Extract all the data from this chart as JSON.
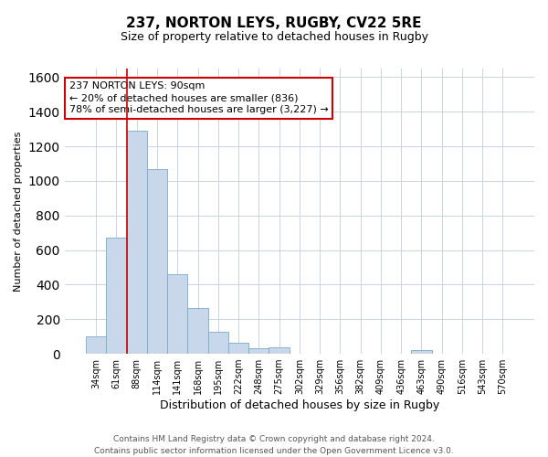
{
  "title": "237, NORTON LEYS, RUGBY, CV22 5RE",
  "subtitle": "Size of property relative to detached houses in Rugby",
  "xlabel": "Distribution of detached houses by size in Rugby",
  "ylabel": "Number of detached properties",
  "footer_line1": "Contains HM Land Registry data © Crown copyright and database right 2024.",
  "footer_line2": "Contains public sector information licensed under the Open Government Licence v3.0.",
  "annotation_line1": "237 NORTON LEYS: 90sqm",
  "annotation_line2": "← 20% of detached houses are smaller (836)",
  "annotation_line3": "78% of semi-detached houses are larger (3,227) →",
  "bar_color": "#c8d8ea",
  "bar_edge_color": "#7aaac8",
  "vline_color": "#cc0000",
  "categories": [
    "34sqm",
    "61sqm",
    "88sqm",
    "114sqm",
    "141sqm",
    "168sqm",
    "195sqm",
    "222sqm",
    "248sqm",
    "275sqm",
    "302sqm",
    "329sqm",
    "356sqm",
    "382sqm",
    "409sqm",
    "436sqm",
    "463sqm",
    "490sqm",
    "516sqm",
    "543sqm",
    "570sqm"
  ],
  "values": [
    100,
    670,
    1290,
    1070,
    460,
    265,
    125,
    65,
    30,
    35,
    0,
    0,
    0,
    0,
    0,
    0,
    20,
    0,
    0,
    0,
    0
  ],
  "ylim": [
    0,
    1650
  ],
  "yticks": [
    0,
    200,
    400,
    600,
    800,
    1000,
    1200,
    1400,
    1600
  ],
  "vline_pos": 2.0,
  "grid_color": "#c8d4e4",
  "background_color": "#ffffff",
  "title_fontsize": 11,
  "subtitle_fontsize": 9,
  "ylabel_fontsize": 8,
  "xlabel_fontsize": 9,
  "tick_fontsize": 7,
  "footer_fontsize": 6.5,
  "ann_fontsize": 8
}
